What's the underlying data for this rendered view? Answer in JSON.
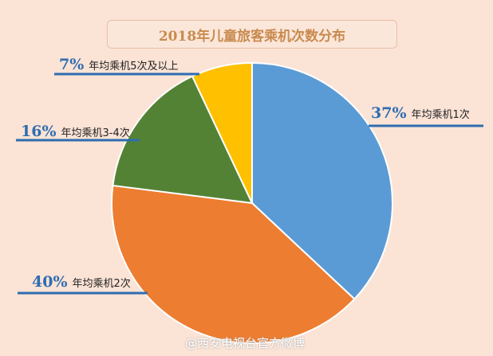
{
  "chart_data": {
    "type": "pie",
    "title": "2018年儿童旅客乘机次数分布",
    "start": "top",
    "direction": "clockwise",
    "slices": [
      {
        "label": "年均乘机1次",
        "value": 37,
        "pct_label": "37%",
        "color": "#5b9bd5"
      },
      {
        "label": "年均乘机2次",
        "value": 40,
        "pct_label": "40%",
        "color": "#ed7d31"
      },
      {
        "label": "年均乘机3-4次",
        "value": 16,
        "pct_label": "16%",
        "color": "#548235"
      },
      {
        "label": "年均乘机5次及以上",
        "value": 7,
        "pct_label": "7%",
        "color": "#ffc000"
      }
    ]
  },
  "watermark": "@西安电视台官方微博"
}
